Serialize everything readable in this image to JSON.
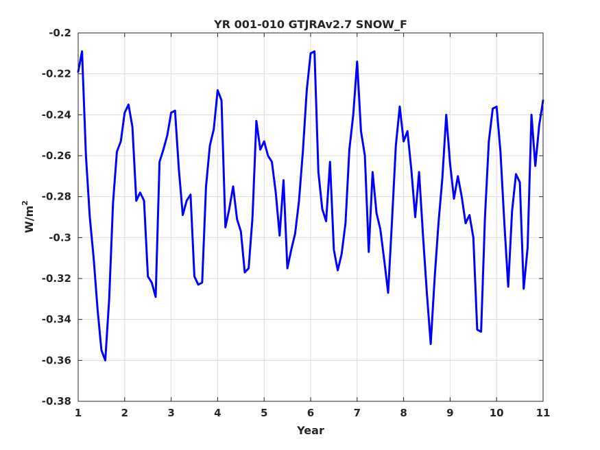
{
  "colors": {
    "series": "#0000ff",
    "axis": "#262626",
    "grid": "#dcdcdc",
    "background": "#ffffff"
  },
  "chart_data": {
    "type": "line",
    "title": "YR 001-010 GTJRAv2.7 SNOW_F",
    "xlabel": "Year",
    "ylabel": {
      "base": "W/m",
      "sup": "2"
    },
    "xlim": [
      1,
      11
    ],
    "ylim": [
      -0.38,
      -0.2
    ],
    "grid": true,
    "xticks": [
      1,
      2,
      3,
      4,
      5,
      6,
      7,
      8,
      9,
      10,
      11
    ],
    "xtick_labels": [
      "1",
      "2",
      "3",
      "4",
      "5",
      "6",
      "7",
      "8",
      "9",
      "10",
      "11"
    ],
    "yticks": [
      -0.2,
      -0.22,
      -0.24,
      -0.26,
      -0.28,
      -0.3,
      -0.32,
      -0.34,
      -0.36,
      -0.38
    ],
    "ytick_labels": [
      "-0.2",
      "-0.22",
      "-0.24",
      "-0.26",
      "-0.28",
      "-0.3",
      "-0.32",
      "-0.34",
      "-0.36",
      "-0.38"
    ],
    "series": [
      {
        "color": "#0000ff",
        "x": [
          1.0,
          1.083,
          1.167,
          1.25,
          1.333,
          1.417,
          1.5,
          1.583,
          1.667,
          1.75,
          1.833,
          1.917,
          2.0,
          2.083,
          2.167,
          2.25,
          2.333,
          2.417,
          2.5,
          2.583,
          2.667,
          2.75,
          2.833,
          2.917,
          3.0,
          3.083,
          3.167,
          3.25,
          3.333,
          3.417,
          3.5,
          3.583,
          3.667,
          3.75,
          3.833,
          3.917,
          4.0,
          4.083,
          4.167,
          4.25,
          4.333,
          4.417,
          4.5,
          4.583,
          4.667,
          4.75,
          4.833,
          4.917,
          5.0,
          5.083,
          5.167,
          5.25,
          5.333,
          5.417,
          5.5,
          5.583,
          5.667,
          5.75,
          5.833,
          5.917,
          6.0,
          6.083,
          6.167,
          6.25,
          6.333,
          6.417,
          6.5,
          6.583,
          6.667,
          6.75,
          6.833,
          6.917,
          7.0,
          7.083,
          7.167,
          7.25,
          7.333,
          7.417,
          7.5,
          7.583,
          7.667,
          7.75,
          7.833,
          7.917,
          8.0,
          8.083,
          8.167,
          8.25,
          8.333,
          8.417,
          8.5,
          8.583,
          8.667,
          8.75,
          8.833,
          8.917,
          9.0,
          9.083,
          9.167,
          9.25,
          9.333,
          9.417,
          9.5,
          9.583,
          9.667,
          9.75,
          9.833,
          9.917,
          10.0,
          10.083,
          10.167,
          10.25,
          10.333,
          10.417,
          10.5,
          10.583,
          10.667,
          10.75,
          10.833,
          10.917,
          11.0
        ],
        "y": [
          -0.219,
          -0.209,
          -0.26,
          -0.29,
          -0.31,
          -0.335,
          -0.355,
          -0.36,
          -0.33,
          -0.283,
          -0.258,
          -0.253,
          -0.239,
          -0.235,
          -0.246,
          -0.282,
          -0.278,
          -0.282,
          -0.319,
          -0.322,
          -0.329,
          -0.263,
          -0.257,
          -0.25,
          -0.239,
          -0.238,
          -0.267,
          -0.289,
          -0.282,
          -0.279,
          -0.319,
          -0.323,
          -0.322,
          -0.275,
          -0.255,
          -0.247,
          -0.228,
          -0.233,
          -0.295,
          -0.286,
          -0.275,
          -0.291,
          -0.297,
          -0.317,
          -0.315,
          -0.29,
          -0.243,
          -0.257,
          -0.253,
          -0.26,
          -0.263,
          -0.278,
          -0.299,
          -0.272,
          -0.315,
          -0.306,
          -0.298,
          -0.282,
          -0.258,
          -0.228,
          -0.21,
          -0.209,
          -0.268,
          -0.286,
          -0.292,
          -0.263,
          -0.306,
          -0.316,
          -0.308,
          -0.293,
          -0.257,
          -0.24,
          -0.214,
          -0.248,
          -0.26,
          -0.307,
          -0.268,
          -0.288,
          -0.296,
          -0.311,
          -0.327,
          -0.292,
          -0.255,
          -0.236,
          -0.253,
          -0.248,
          -0.267,
          -0.29,
          -0.268,
          -0.299,
          -0.327,
          -0.352,
          -0.32,
          -0.293,
          -0.271,
          -0.24,
          -0.264,
          -0.281,
          -0.27,
          -0.28,
          -0.293,
          -0.289,
          -0.3,
          -0.345,
          -0.346,
          -0.29,
          -0.253,
          -0.237,
          -0.236,
          -0.258,
          -0.293,
          -0.324,
          -0.287,
          -0.269,
          -0.273,
          -0.325,
          -0.305,
          -0.24,
          -0.265,
          -0.245,
          -0.233
        ]
      }
    ]
  }
}
